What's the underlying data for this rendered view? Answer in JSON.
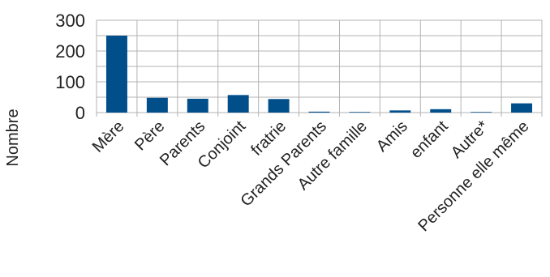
{
  "chart_data": {
    "type": "bar",
    "title": "",
    "xlabel": "",
    "ylabel": "Nombre",
    "categories": [
      "Mère",
      "Père",
      "Parents",
      "Conjoint",
      "fratrie",
      "Grands Parents",
      "Autre famille",
      "Amis",
      "enfant",
      "Autre*",
      "Personne elle même"
    ],
    "values": [
      250,
      48,
      45,
      57,
      44,
      3,
      2,
      7,
      11,
      2,
      30
    ],
    "ylim": [
      0,
      300
    ],
    "yticks": [
      0,
      100,
      200,
      300
    ],
    "minor_gridline_step": 50,
    "grid": true,
    "legend": "none",
    "bar_color": "#004e8a",
    "grid_color": "#b3b3b3"
  }
}
